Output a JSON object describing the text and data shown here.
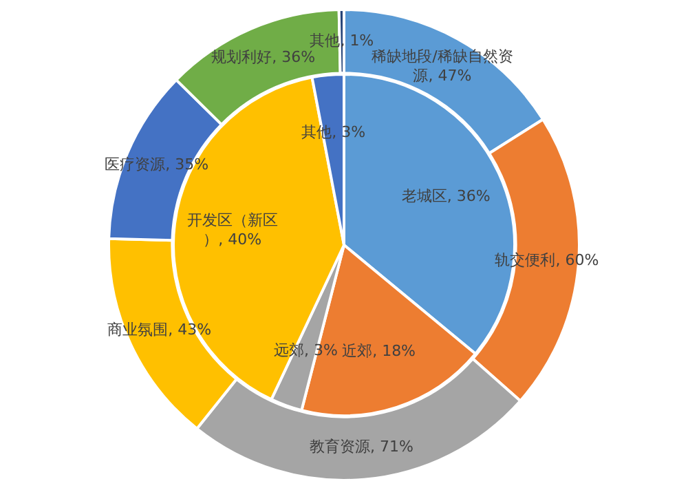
{
  "chart_data": [
    {
      "type": "donut",
      "legend": false,
      "categories": [
        "稀缺地段/稀缺自然资源",
        "轨交便利",
        "教育资源",
        "商业氛围",
        "医疗资源",
        "规划利好",
        "其他"
      ],
      "values": [
        47,
        60,
        71,
        43,
        35,
        36,
        1
      ],
      "colors": [
        "#5b9bd5",
        "#ed7d31",
        "#a5a5a5",
        "#ffc000",
        "#4472c4",
        "#70ad47",
        "#264478"
      ],
      "value_labels": [
        ", 47%",
        ", 60%",
        ", 71%",
        ", 43%",
        ", 35%",
        ", 36%",
        ", 1%"
      ]
    },
    {
      "type": "pie",
      "legend": false,
      "categories": [
        "老城区",
        "近郊",
        "远郊",
        "开发区（新区）",
        "其他"
      ],
      "values": [
        36,
        18,
        3,
        40,
        3
      ],
      "colors": [
        "#5b9bd5",
        "#ed7d31",
        "#a5a5a5",
        "#ffc000",
        "#4472c4"
      ],
      "value_labels": [
        ", 36%",
        ", 18%",
        ", 3%",
        ", 40%",
        ", 3%"
      ]
    }
  ]
}
